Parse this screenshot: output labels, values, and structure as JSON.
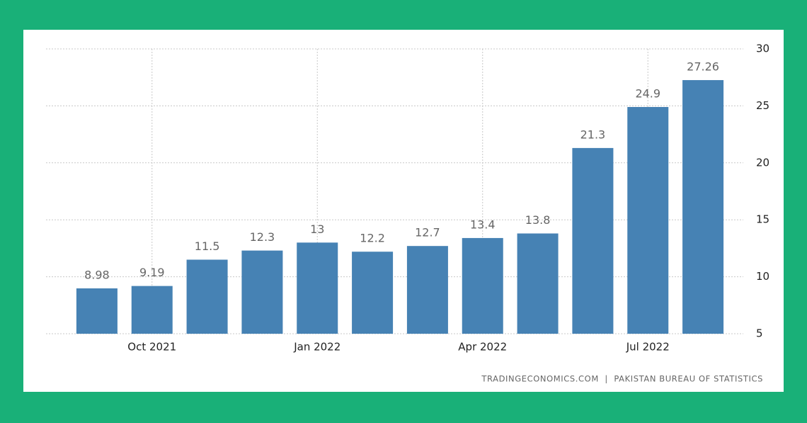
{
  "chart_data": {
    "type": "bar",
    "categories": [
      null,
      "Oct 2021",
      null,
      null,
      "Jan 2022",
      null,
      null,
      "Apr 2022",
      null,
      null,
      "Jul 2022",
      null
    ],
    "values": [
      8.98,
      9.19,
      11.5,
      12.3,
      13,
      12.2,
      12.7,
      13.4,
      13.8,
      21.3,
      24.9,
      27.26
    ],
    "color": "#4682b4",
    "ylim": [
      5,
      30
    ],
    "yticks": [
      5,
      10,
      15,
      20,
      25,
      30
    ],
    "grid": true,
    "source": "TRADINGECONOMICS.COM  |  PAKISTAN BUREAU OF STATISTICS"
  }
}
